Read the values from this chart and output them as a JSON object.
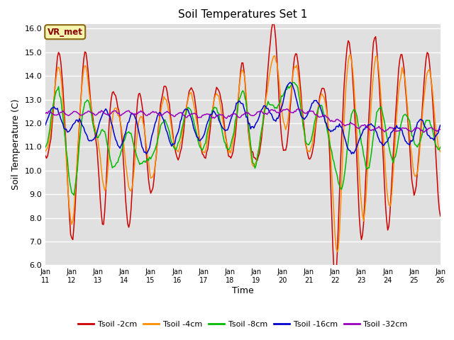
{
  "title": "Soil Temperatures Set 1",
  "xlabel": "Time",
  "ylabel": "Soil Temperature (C)",
  "ylim": [
    6.0,
    16.2
  ],
  "yticks": [
    6.0,
    7.0,
    8.0,
    9.0,
    10.0,
    11.0,
    12.0,
    13.0,
    14.0,
    15.0,
    16.0
  ],
  "xtick_labels": [
    "Jan 11",
    "Jan 12",
    "Jan 13",
    "Jan 14",
    "Jan 15",
    "Jan 16",
    "Jan 17",
    "Jan 18",
    "Jan 19",
    "Jan 20",
    "Jan 21",
    "Jan 22",
    "Jan 23",
    "Jan 24",
    "Jan 25",
    "Jan 26"
  ],
  "annotation": "VR_met",
  "bg_color": "#e0e0e0",
  "line_colors": [
    "#cc0000",
    "#ff8c00",
    "#00bb00",
    "#0000cc",
    "#9900bb"
  ],
  "line_labels": [
    "Tsoil -2cm",
    "Tsoil -4cm",
    "Tsoil -8cm",
    "Tsoil -16cm",
    "Tsoil -32cm"
  ],
  "n_points": 361
}
